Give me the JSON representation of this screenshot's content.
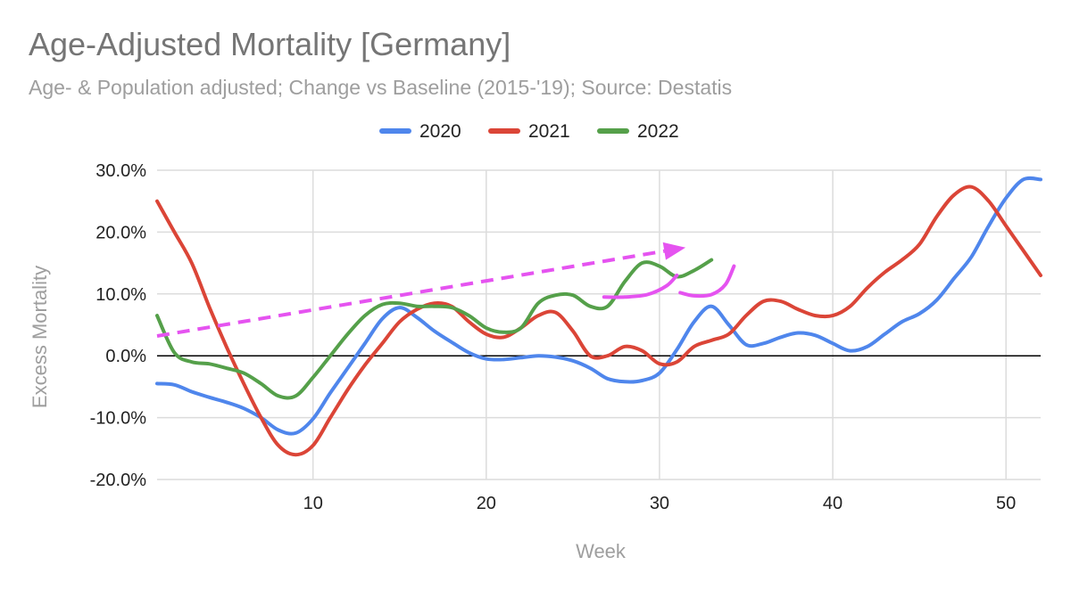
{
  "chart_data": {
    "type": "line",
    "title": "Age-Adjusted Mortality [Germany]",
    "subtitle": "Age- & Population adjusted; Change vs Baseline (2015-'19); Source: Destatis",
    "xlabel": "Week",
    "ylabel": "Excess Mortality",
    "xlim": [
      1,
      52
    ],
    "ylim": [
      -20,
      30
    ],
    "x_ticks": [
      10,
      20,
      30,
      40,
      50
    ],
    "y_ticks": [
      30,
      20,
      10,
      0,
      -10,
      -20
    ],
    "y_tick_labels": [
      "30.0%",
      "20.0%",
      "10.0%",
      "0.0%",
      "-10.0%",
      "-20.0%"
    ],
    "grid": true,
    "legend_position": "top",
    "series": [
      {
        "name": "2020",
        "color": "#4f86ec",
        "x": [
          1,
          2,
          3,
          4,
          5,
          6,
          7,
          8,
          9,
          10,
          11,
          12,
          13,
          14,
          15,
          16,
          17,
          18,
          19,
          20,
          21,
          22,
          23,
          24,
          25,
          26,
          27,
          28,
          29,
          30,
          31,
          32,
          33,
          34,
          35,
          36,
          37,
          38,
          39,
          40,
          41,
          42,
          43,
          44,
          45,
          46,
          47,
          48,
          49,
          50,
          51,
          52
        ],
        "values": [
          -4.5,
          -4.7,
          -5.8,
          -6.7,
          -7.5,
          -8.5,
          -10.0,
          -12.0,
          -12.5,
          -10.2,
          -6.0,
          -2.0,
          2.0,
          6.0,
          7.8,
          6.2,
          4.0,
          2.2,
          0.5,
          -0.5,
          -0.6,
          -0.3,
          0,
          -0.2,
          -0.8,
          -2.0,
          -3.7,
          -4.2,
          -4.0,
          -2.8,
          1.0,
          5.5,
          8.0,
          5.0,
          1.8,
          2.0,
          3.0,
          3.7,
          3.3,
          2.0,
          0.8,
          1.5,
          3.5,
          5.5,
          6.8,
          9.0,
          12.5,
          16.0,
          21.0,
          25.5,
          28.5,
          28.5
        ]
      },
      {
        "name": "2021",
        "color": "#db4537",
        "x": [
          1,
          2,
          3,
          4,
          5,
          6,
          7,
          8,
          9,
          10,
          11,
          12,
          13,
          14,
          15,
          16,
          17,
          18,
          19,
          20,
          21,
          22,
          23,
          24,
          25,
          26,
          27,
          28,
          29,
          30,
          31,
          32,
          33,
          34,
          35,
          36,
          37,
          38,
          39,
          40,
          41,
          42,
          43,
          44,
          45,
          46,
          47,
          48,
          49,
          50,
          51,
          52
        ],
        "values": [
          25.0,
          20.0,
          15.0,
          8.0,
          1.5,
          -4.5,
          -10.0,
          -14.5,
          -16.0,
          -14.5,
          -10.0,
          -5.5,
          -1.5,
          2.0,
          5.5,
          7.5,
          8.5,
          8.0,
          5.5,
          3.5,
          3.0,
          4.5,
          6.5,
          7.0,
          4.0,
          0,
          0,
          1.5,
          0.8,
          -1.3,
          -1.0,
          1.5,
          2.5,
          3.5,
          6.5,
          8.8,
          8.8,
          7.5,
          6.5,
          6.5,
          8.0,
          11.0,
          13.5,
          15.5,
          18.0,
          22.5,
          26.0,
          27.3,
          25.0,
          21.0,
          17.0,
          13.0
        ]
      },
      {
        "name": "2022",
        "color": "#55a04a",
        "x": [
          1,
          2,
          3,
          4,
          5,
          6,
          7,
          8,
          9,
          10,
          11,
          12,
          13,
          14,
          15,
          16,
          17,
          18,
          19,
          20,
          21,
          22,
          23,
          24,
          25,
          26,
          27,
          28,
          29,
          30,
          31,
          32,
          33
        ],
        "values": [
          6.5,
          0.5,
          -1.0,
          -1.3,
          -2.0,
          -2.8,
          -4.5,
          -6.5,
          -6.5,
          -3.5,
          0,
          3.5,
          6.5,
          8.3,
          8.5,
          8.0,
          8.0,
          7.8,
          6.5,
          4.5,
          3.8,
          4.5,
          8.5,
          9.8,
          9.8,
          8.0,
          8.0,
          12.0,
          15.0,
          14.5,
          12.8,
          13.8,
          15.5
        ]
      }
    ],
    "annotations": [
      {
        "type": "dashed-arrow",
        "color": "#e553f0",
        "from": {
          "x": 1,
          "y": 3.2
        },
        "to": {
          "x": 31.5,
          "y": 17.5
        }
      },
      {
        "type": "curve",
        "color": "#e553f0",
        "x": [
          26.8,
          28.0,
          29.3,
          30.4,
          31.0
        ],
        "values": [
          9.5,
          9.5,
          9.9,
          11.3,
          13.0
        ]
      },
      {
        "type": "curve",
        "color": "#e553f0",
        "x": [
          31.2,
          32.0,
          33.0,
          33.8,
          34.3
        ],
        "values": [
          10.2,
          9.7,
          9.9,
          11.5,
          14.5
        ]
      }
    ]
  }
}
